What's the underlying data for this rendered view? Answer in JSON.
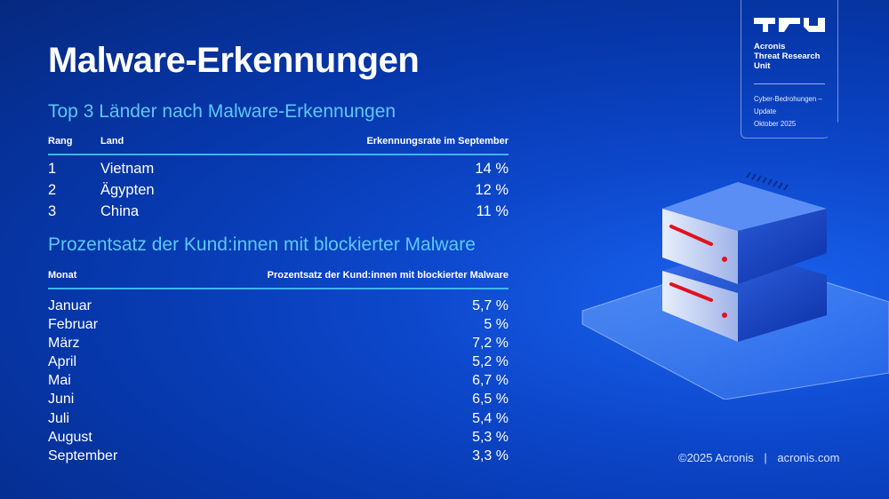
{
  "title": "Malware-Erkennungen",
  "top3": {
    "heading": "Top 3 Länder nach Malware-Erkennungen",
    "columns": [
      "Rang",
      "Land",
      "Erkennungsrate im September"
    ],
    "rows": [
      {
        "rank": "1",
        "country": "Vietnam",
        "rate": "14 %"
      },
      {
        "rank": "2",
        "country": "Ägypten",
        "rate": "12 %"
      },
      {
        "rank": "3",
        "country": "China",
        "rate": "11 %"
      }
    ]
  },
  "blocked": {
    "heading": "Prozentsatz der Kund:innen mit blockierter Malware",
    "columns": [
      "Monat",
      "Prozentsatz der Kund:innen mit blockierter Malware"
    ],
    "rows": [
      {
        "month": "Januar",
        "value": "5,7 %"
      },
      {
        "month": "Februar",
        "value": "5 %"
      },
      {
        "month": "März",
        "value": "7,2 %"
      },
      {
        "month": "April",
        "value": "5,2 %"
      },
      {
        "month": "Mai",
        "value": "6,7 %"
      },
      {
        "month": "Juni",
        "value": "6,5 %"
      },
      {
        "month": "Juli",
        "value": "5,4 %"
      },
      {
        "month": "August",
        "value": "5,3 %"
      },
      {
        "month": "September",
        "value": "3,3 %"
      }
    ]
  },
  "badge": {
    "logo": "TRU",
    "line1": "Acronis",
    "line2": "Threat Research",
    "line3": "Unit",
    "sub1": "Cyber-Bedrohungen –",
    "sub2": "Update",
    "sub3": "Oktober 2025"
  },
  "footer": {
    "copyright": "©2025 Acronis",
    "separator": "|",
    "site": "acronis.com"
  },
  "colors": {
    "accent": "#5cc8f5",
    "background": "#0c46c9"
  }
}
